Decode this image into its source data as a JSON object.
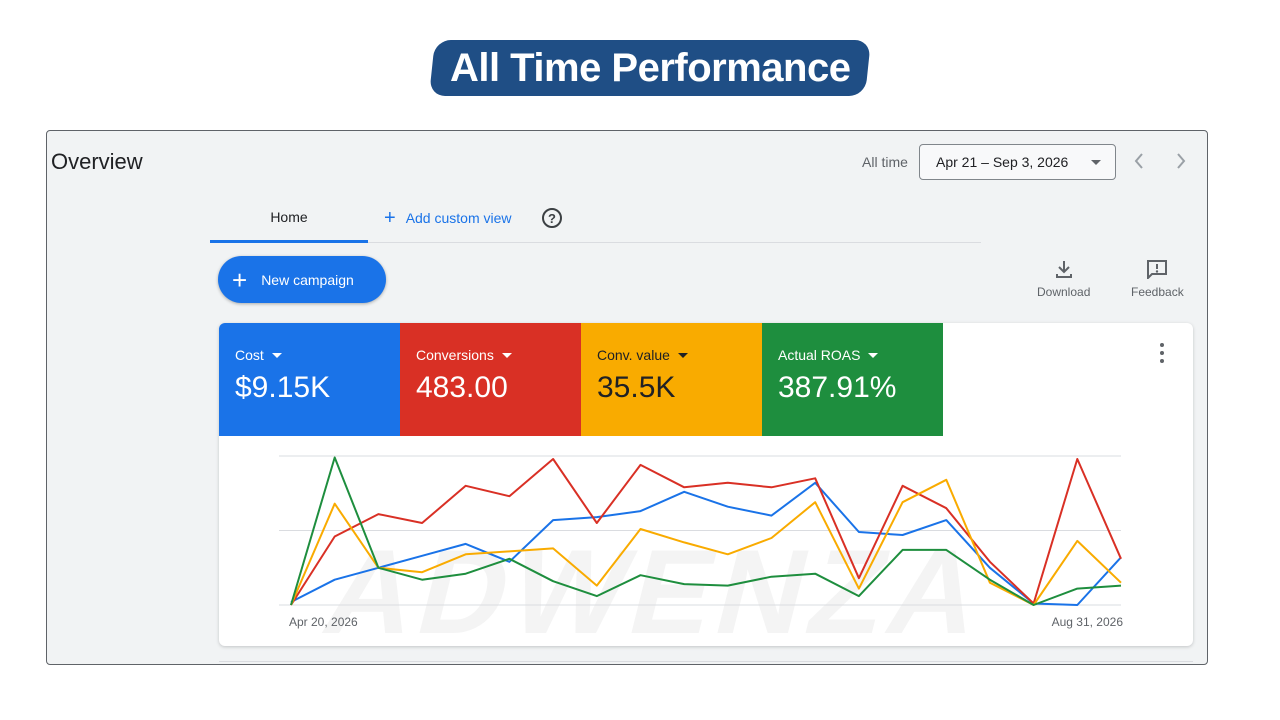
{
  "banner": {
    "title": "All Time Performance"
  },
  "header": {
    "title": "Overview",
    "range_label": "All time",
    "date_range": "Apr 21 – Sep 3, 2026"
  },
  "tabs": {
    "home": "Home",
    "add_custom_view": "Add custom view"
  },
  "toolbar": {
    "new_campaign": "New campaign",
    "download": "Download",
    "feedback": "Feedback"
  },
  "metrics": [
    {
      "label": "Cost",
      "value": "$9.15K",
      "color": "#1a73e8"
    },
    {
      "label": "Conversions",
      "value": "483.00",
      "color": "#d93025"
    },
    {
      "label": "Conv. value",
      "value": "35.5K",
      "color": "#f9ab00"
    },
    {
      "label": "Actual ROAS",
      "value": "387.91%",
      "color": "#1e8e3e"
    }
  ],
  "watermark": "ADWENZA",
  "chart_data": {
    "type": "line",
    "x_start_label": "Apr 20, 2026",
    "x_end_label": "Aug 31, 2026",
    "ylim": [
      0,
      100
    ],
    "grid": true,
    "series": [
      {
        "color": "#1a73e8",
        "values": [
          2,
          17,
          25,
          33,
          41,
          29,
          57,
          59,
          63,
          76,
          66,
          60,
          82,
          49,
          47,
          57,
          25,
          1,
          0,
          32
        ]
      },
      {
        "color": "#d93025",
        "values": [
          0,
          46,
          61,
          55,
          80,
          73,
          98,
          55,
          94,
          79,
          82,
          79,
          85,
          18,
          80,
          65,
          29,
          1,
          98,
          31
        ]
      },
      {
        "color": "#f9ab00",
        "values": [
          0,
          68,
          25,
          22,
          34,
          36,
          38,
          13,
          51,
          42,
          34,
          45,
          69,
          11,
          69,
          84,
          15,
          0,
          43,
          15
        ]
      },
      {
        "color": "#1e8e3e",
        "values": [
          0,
          99,
          25,
          17,
          21,
          31,
          16,
          6,
          20,
          14,
          13,
          19,
          21,
          6,
          37,
          37,
          17,
          0,
          11,
          13
        ]
      }
    ]
  }
}
